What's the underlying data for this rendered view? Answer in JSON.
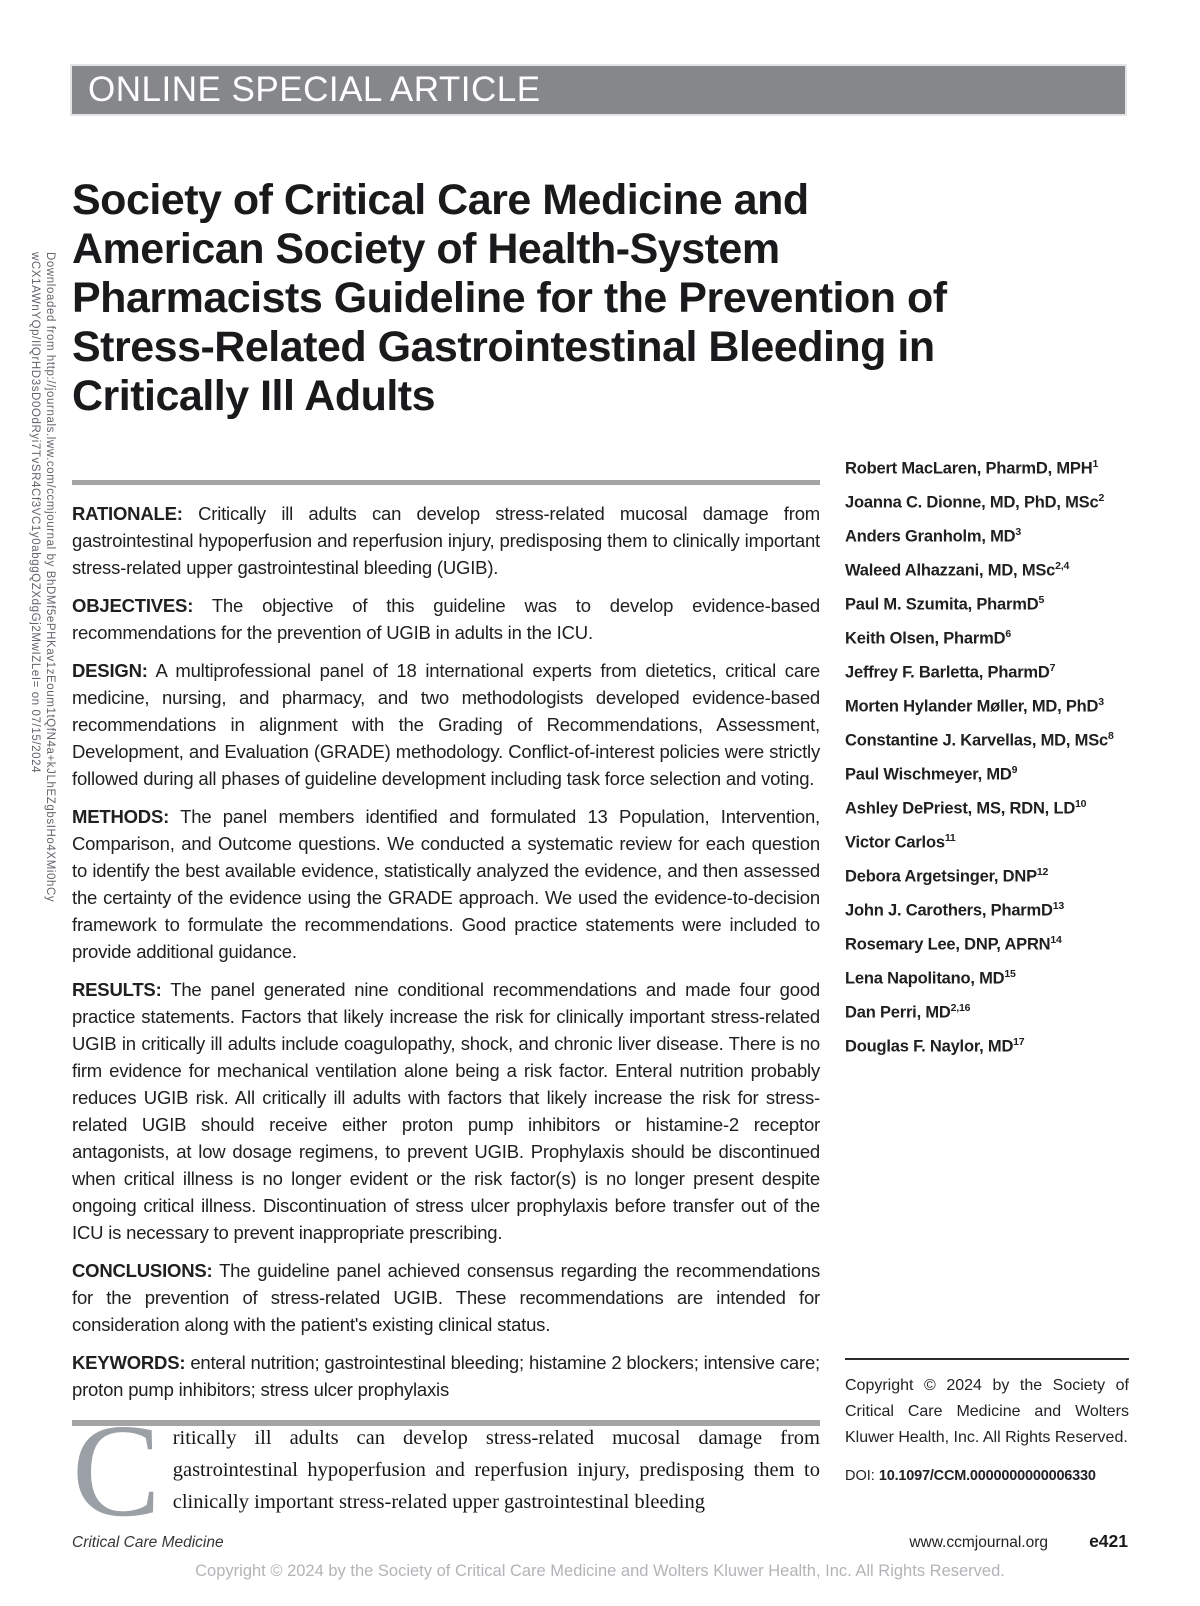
{
  "banner": {
    "label": "ONLINE SPECIAL ARTICLE"
  },
  "watermark": {
    "line1": "Downloaded from http://journals.lww.com/ccmjournal by BhDMf5ePHKav1zEoum1tQfN4a+kJLhEZgbsIHo4XMi0hCy",
    "line2": "wCX1AWnYQp/IlQrHD3sD0OdRyi7TvSR4Cf3VC1y0abggQZXdgGj2MwIZLeI= on 07/15/2024"
  },
  "title": "Society of Critical Care Medicine and\nAmerican Society of Health-System\nPharmacists Guideline for the Prevention of\nStress-Related Gastrointestinal Bleeding in\nCritically Ill Adults",
  "abstract": {
    "sections": [
      {
        "label": "RATIONALE:",
        "text": "Critically ill adults can develop stress-related mucosal damage from gastrointestinal hypoperfusion and reperfusion injury, predisposing them to clinically important stress-related upper gastrointestinal bleeding (UGIB)."
      },
      {
        "label": "OBJECTIVES:",
        "text": "The objective of this guideline was to develop evidence-based recommendations for the prevention of UGIB in adults in the ICU."
      },
      {
        "label": "DESIGN:",
        "text": "A multiprofessional panel of 18 international experts from dietetics, critical care medicine, nursing, and pharmacy, and two methodologists developed evidence-based recommendations in alignment with the Grading of Recommendations, Assessment, Development, and Evaluation (GRADE) methodology. Conflict-of-interest policies were strictly followed during all phases of guideline development including task force selection and voting."
      },
      {
        "label": "METHODS:",
        "text": "The panel members identified and formulated 13 Population, Intervention, Comparison, and Outcome questions. We conducted a systematic review for each question to identify the best available evidence, statistically analyzed the evidence, and then assessed the certainty of the evidence using the GRADE approach. We used the evidence-to-decision framework to formulate the recommendations. Good practice statements were included to provide additional guidance."
      },
      {
        "label": "RESULTS:",
        "text": "The panel generated nine conditional recommendations and made four good practice statements. Factors that likely increase the risk for clinically important stress-related UGIB in critically ill adults include coagulopathy, shock, and chronic liver disease. There is no firm evidence for mechanical ventilation alone being a risk factor. Enteral nutrition probably reduces UGIB risk. All critically ill adults with factors that likely increase the risk for stress-related UGIB should receive either proton pump inhibitors or histamine-2 receptor antagonists, at low dosage regimens, to prevent UGIB. Prophylaxis should be discontinued when critical illness is no longer evident or the risk factor(s) is no longer present despite ongoing critical illness. Discontinuation of stress ulcer prophylaxis before transfer out of the ICU is necessary to prevent inappropriate prescribing."
      },
      {
        "label": "CONCLUSIONS:",
        "text": "The guideline panel achieved consensus regarding the recommendations for the prevention of stress-related UGIB. These recommendations are intended for consideration along with the patient's existing clinical status."
      },
      {
        "label": "KEYWORDS:",
        "text": "enteral nutrition; gastrointestinal bleeding; histamine 2 blockers; intensive care; proton pump inhibitors; stress ulcer prophylaxis"
      }
    ]
  },
  "authors": [
    {
      "name": "Robert MacLaren, PharmD, MPH",
      "sup": "1"
    },
    {
      "name": "Joanna C. Dionne, MD, PhD, MSc",
      "sup": "2"
    },
    {
      "name": "Anders Granholm, MD",
      "sup": "3"
    },
    {
      "name": "Waleed Alhazzani, MD, MSc",
      "sup": "2,4"
    },
    {
      "name": "Paul M. Szumita, PharmD",
      "sup": "5"
    },
    {
      "name": "Keith Olsen, PharmD",
      "sup": "6"
    },
    {
      "name": "Jeffrey F. Barletta, PharmD",
      "sup": "7"
    },
    {
      "name": "Morten Hylander Møller, MD, PhD",
      "sup": "3"
    },
    {
      "name": "Constantine J. Karvellas, MD, MSc",
      "sup": "8"
    },
    {
      "name": "Paul Wischmeyer, MD",
      "sup": "9"
    },
    {
      "name": "Ashley DePriest, MS, RDN, LD",
      "sup": "10"
    },
    {
      "name": "Victor Carlos",
      "sup": "11"
    },
    {
      "name": "Debora Argetsinger, DNP",
      "sup": "12"
    },
    {
      "name": "John J. Carothers, PharmD",
      "sup": "13"
    },
    {
      "name": "Rosemary Lee, DNP, APRN",
      "sup": "14"
    },
    {
      "name": "Lena Napolitano, MD",
      "sup": "15"
    },
    {
      "name": "Dan Perri, MD",
      "sup": "2,16"
    },
    {
      "name": "Douglas F. Naylor, MD",
      "sup": "17"
    }
  ],
  "copyright_box": {
    "text": "Copyright © 2024 by the Society of Critical Care Medicine and Wolters Kluwer Health, Inc. All Rights Reserved.",
    "doi_label": "DOI: ",
    "doi_value": "10.1097/CCM.0000000000006330"
  },
  "intro": {
    "dropcap": "C",
    "text": "ritically ill adults can develop stress-related mucosal damage from gastrointestinal hypoperfusion and reperfusion injury, predisposing them to clinically important stress-related upper gastrointestinal bleeding"
  },
  "footer": {
    "journal": "Critical Care Medicine",
    "site": "www.ccmjournal.org",
    "page": "e421",
    "copyright": "Copyright © 2024 by the Society of Critical Care Medicine and Wolters Kluwer Health, Inc. All Rights Reserved."
  },
  "colors": {
    "banner_bg": "#85878b",
    "rule_gray": "#a3a4a6",
    "dropcap_gray": "#9aa0a5",
    "footer_copyright_gray": "#b2b4b7"
  }
}
